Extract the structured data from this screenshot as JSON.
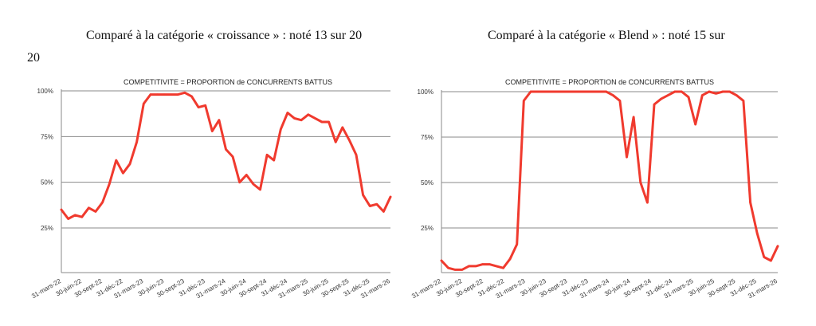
{
  "headings": {
    "left": "Comparé à la catégorie « croissance » :  noté 13 sur 20",
    "left_cont": "20",
    "right": "Comparé à la catégorie « Blend » :  noté 15 sur"
  },
  "colors": {
    "series": "#f03a2e",
    "grid": "#8a8a8a"
  },
  "chart_data": [
    {
      "type": "line",
      "title": "COMPETITIVITE = PROPORTION de CONCURRENTS BATTUS",
      "ylim": [
        0,
        100
      ],
      "yticks": [
        25,
        50,
        75,
        100
      ],
      "ytick_labels": [
        "25%",
        "50%",
        "75%",
        "100%"
      ],
      "xtick_labels": [
        "31-mars-22",
        "30-juin-22",
        "30-sept-22",
        "31-déc-22",
        "31-mars-23",
        "30-juin-23",
        "30-sept-23",
        "31-déc-23",
        "31-mars-24",
        "30-juin-24",
        "30-sept-24",
        "31-déc-24",
        "31-mars-25",
        "30-juin-25",
        "30-sept-25",
        "31-déc-25",
        "31-mars-26"
      ],
      "grid": true,
      "series": [
        {
          "values": [
            35,
            30,
            32,
            31,
            36,
            34,
            39,
            49,
            62,
            55,
            60,
            72,
            93,
            98,
            98,
            98,
            98,
            98,
            99,
            97,
            91,
            92,
            78,
            84,
            68,
            64,
            50,
            54,
            49,
            46,
            65,
            62,
            79,
            88,
            85,
            84,
            87,
            85,
            83,
            83,
            72,
            80,
            73,
            65,
            43,
            37,
            38,
            34,
            42
          ]
        }
      ]
    },
    {
      "type": "line",
      "title": "COMPETITIVITE = PROPORTION de CONCURRENTS BATTUS",
      "ylim": [
        0,
        100
      ],
      "yticks": [
        25,
        50,
        75,
        100
      ],
      "ytick_labels": [
        "25%",
        "50%",
        "75%",
        "100%"
      ],
      "xtick_labels": [
        "31-mars-22",
        "30-juin-22",
        "30-sept-22",
        "31-déc-22",
        "31-mars-23",
        "30-juin-23",
        "30-sept-23",
        "31-déc-23",
        "31-mars-24",
        "30-juin-24",
        "30-sept-24",
        "31-déc-24",
        "31-mars-25",
        "30-juin-25",
        "30-sept-25",
        "31-déc-25",
        "31-mars-26"
      ],
      "grid": true,
      "series": [
        {
          "values": [
            7,
            3,
            2,
            2,
            4,
            4,
            5,
            5,
            4,
            3,
            8,
            16,
            95,
            100,
            100,
            100,
            100,
            100,
            100,
            100,
            100,
            100,
            100,
            100,
            100,
            98,
            95,
            64,
            86,
            50,
            39,
            93,
            96,
            98,
            100,
            100,
            97,
            82,
            98,
            100,
            99,
            100,
            100,
            98,
            95,
            39,
            22,
            9,
            7,
            15
          ]
        }
      ]
    }
  ]
}
